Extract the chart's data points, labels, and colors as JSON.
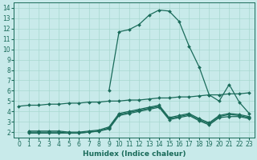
{
  "xlabel": "Humidex (Indice chaleur)",
  "xlim": [
    -0.5,
    23.5
  ],
  "ylim": [
    1.5,
    14.5
  ],
  "xticks": [
    0,
    1,
    2,
    3,
    4,
    5,
    6,
    7,
    8,
    9,
    10,
    11,
    12,
    13,
    14,
    15,
    16,
    17,
    18,
    19,
    20,
    21,
    22,
    23
  ],
  "yticks": [
    2,
    3,
    4,
    5,
    6,
    7,
    8,
    9,
    10,
    11,
    12,
    13,
    14
  ],
  "background_color": "#c8eaea",
  "grid_color": "#a8d8d0",
  "line_color": "#1a6b5a",
  "lines": [
    {
      "x": [
        0,
        1,
        2,
        3,
        4,
        5,
        6,
        7,
        8,
        9,
        10,
        11,
        12,
        13,
        14,
        15,
        16,
        17,
        18,
        19,
        20,
        21,
        22,
        23
      ],
      "y": [
        4.5,
        4.6,
        4.6,
        4.7,
        4.7,
        4.8,
        4.8,
        4.9,
        4.9,
        5.0,
        5.0,
        5.1,
        5.1,
        5.2,
        5.3,
        5.3,
        5.4,
        5.4,
        5.5,
        5.6,
        5.6,
        5.7,
        5.7,
        5.8
      ]
    },
    {
      "x": [
        1,
        2,
        3,
        4,
        5,
        6,
        7,
        8,
        9,
        10,
        11,
        12,
        13,
        14,
        15,
        16,
        17,
        18,
        19,
        20,
        21,
        22,
        23
      ],
      "y": [
        2.1,
        2.1,
        2.1,
        2.1,
        2.0,
        2.0,
        2.1,
        2.2,
        2.5,
        3.8,
        4.0,
        4.2,
        4.4,
        4.6,
        3.4,
        3.6,
        3.8,
        3.3,
        2.9,
        3.6,
        3.8,
        3.7,
        3.5
      ]
    },
    {
      "x": [
        1,
        2,
        3,
        4,
        5,
        6,
        7,
        8,
        9,
        10,
        11,
        12,
        13,
        14,
        15,
        16,
        17,
        18,
        19,
        20,
        21,
        22,
        23
      ],
      "y": [
        2.0,
        2.0,
        2.0,
        2.0,
        1.9,
        1.9,
        2.0,
        2.1,
        2.4,
        3.7,
        3.9,
        4.1,
        4.3,
        4.5,
        3.3,
        3.5,
        3.7,
        3.2,
        2.8,
        3.5,
        3.7,
        3.6,
        3.4
      ]
    },
    {
      "x": [
        1,
        2,
        3,
        4,
        5,
        6,
        7,
        8,
        9,
        10,
        11,
        12,
        13,
        14,
        15,
        16,
        17,
        18,
        19,
        20,
        21,
        22,
        23
      ],
      "y": [
        1.9,
        1.9,
        1.9,
        1.9,
        1.9,
        1.9,
        2.0,
        2.1,
        2.3,
        3.6,
        3.8,
        4.0,
        4.2,
        4.4,
        3.2,
        3.4,
        3.6,
        3.1,
        2.7,
        3.4,
        3.5,
        3.5,
        3.3
      ]
    },
    {
      "x": [
        9,
        10,
        11,
        12,
        13,
        14,
        15,
        16,
        17,
        18,
        19,
        20,
        21,
        22,
        23
      ],
      "y": [
        6.0,
        11.7,
        11.9,
        12.4,
        13.3,
        13.8,
        13.7,
        12.7,
        10.3,
        8.3,
        5.6,
        5.0,
        6.6,
        4.9,
        3.8
      ]
    }
  ],
  "markers": "D",
  "markersize": 2.0,
  "linewidth": 0.9,
  "tick_fontsize": 5.5,
  "xlabel_fontsize": 6.5
}
